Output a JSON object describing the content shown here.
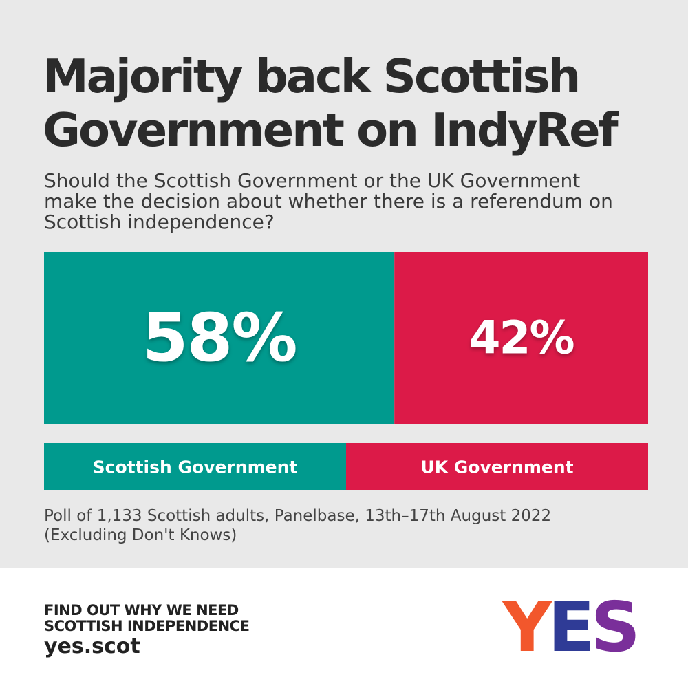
{
  "header": {
    "title_lines": [
      "Majority back Scottish",
      "Government on IndyRef"
    ],
    "subtitle_lines": [
      "Should the Scottish Government or the UK Government",
      "make the decision about whether there is a referendum on",
      "Scottish independence?"
    ]
  },
  "chart_data": {
    "type": "bar",
    "orientation": "stacked-horizontal",
    "title": "Majority back Scottish Government on IndyRef",
    "subtitle": "Should the Scottish Government or the UK Government make the decision about whether there is a referendum on Scottish independence?",
    "categories": [
      "Scottish Government",
      "UK Government"
    ],
    "values": [
      58,
      42
    ],
    "value_labels": [
      "58%",
      "42%"
    ],
    "colors": [
      "#009a8e",
      "#dc1a48"
    ],
    "unit": "%",
    "xlim": [
      0,
      100
    ],
    "grid": false,
    "legend": "bottom"
  },
  "source": {
    "lines": [
      "Poll of 1,133 Scottish adults, Panelbase, 13th–17th August 2022",
      "(Excluding Don't Knows)"
    ]
  },
  "footer": {
    "cta_line1": "FIND OUT WHY WE NEED",
    "cta_line2": "SCOTTISH INDEPENDENCE",
    "url": "yes.scot",
    "logo_letters": [
      "Y",
      "E",
      "S"
    ],
    "logo_colors": [
      "#f2572c",
      "#2f3b96",
      "#7a2f9a"
    ]
  }
}
